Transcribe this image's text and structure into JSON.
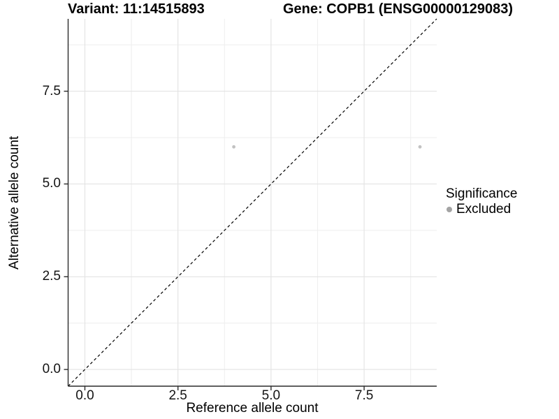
{
  "chart_data": {
    "type": "scatter",
    "titles": {
      "variant": "Variant: 11:14515893",
      "gene": "Gene: COPB1 (ENSG00000129083)"
    },
    "xlabel": "Reference allele count",
    "ylabel": "Alternative allele count",
    "xlim": [
      -0.45,
      9.45
    ],
    "ylim": [
      -0.45,
      9.45
    ],
    "x_ticks": {
      "values": [
        0,
        2.5,
        5,
        7.5
      ],
      "labels": [
        "0.0",
        "2.5",
        "5.0",
        "7.5"
      ]
    },
    "y_ticks": {
      "values": [
        0,
        2.5,
        5,
        7.5
      ],
      "labels": [
        "0.0",
        "2.5",
        "5.0",
        "7.5"
      ]
    },
    "x_minor_ticks": [
      1.25,
      3.75,
      6.25,
      8.75
    ],
    "y_minor_ticks": [
      1.25,
      3.75,
      6.25,
      8.75
    ],
    "grid": "major_and_minor",
    "series": [
      {
        "name": "Excluded",
        "point_color": "#c2c2c2",
        "points": [
          {
            "x": 4,
            "y": 6
          },
          {
            "x": 9,
            "y": 6
          }
        ]
      }
    ],
    "identity_line": {
      "slope": 1,
      "intercept": 0,
      "linetype": "dashed",
      "color": "#000000"
    },
    "legend": {
      "title": "Significance",
      "position": "right",
      "items": [
        {
          "label": "Excluded",
          "swatch_color": "#a3a3a3"
        }
      ]
    },
    "style": {
      "grid_major_color": "#e3e3e3",
      "grid_minor_color": "#efefef",
      "axis_line_color": "#2b2b2b"
    }
  }
}
